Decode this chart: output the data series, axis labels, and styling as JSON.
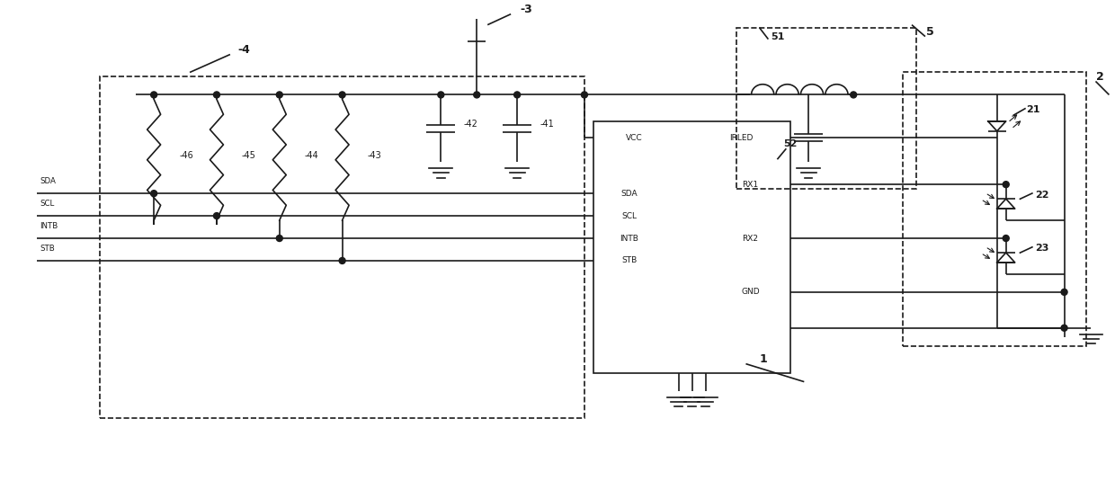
{
  "bg": "#ffffff",
  "lc": "#1a1a1a",
  "lw": 1.2,
  "fw": 12.4,
  "fh": 5.45,
  "dpi": 100,
  "xlim": [
    0,
    124
  ],
  "ylim": [
    0,
    54.5
  ]
}
